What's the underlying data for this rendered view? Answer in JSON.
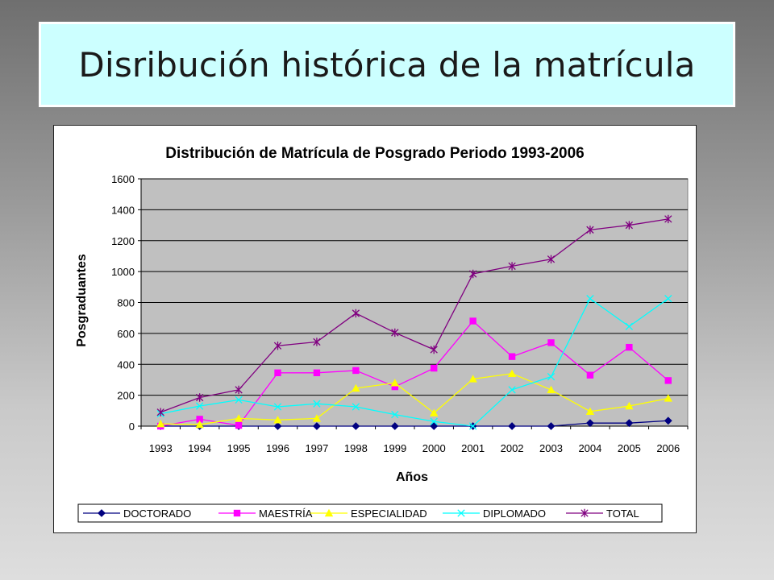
{
  "slide": {
    "title": "Disribución histórica de la matrícula"
  },
  "chart_data": {
    "type": "line",
    "title": "Distribución de Matrícula de Posgrado Periodo 1993-2006",
    "xlabel": "Años",
    "ylabel": "Posgraduantes",
    "ylim": [
      0,
      1600
    ],
    "yticks": [
      0,
      200,
      400,
      600,
      800,
      1000,
      1200,
      1400,
      1600
    ],
    "grid": true,
    "legend_position": "bottom",
    "plot_background": "#c0c0c0",
    "categories": [
      "1993",
      "1994",
      "1995",
      "1996",
      "1997",
      "1998",
      "1999",
      "2000",
      "2001",
      "2002",
      "2003",
      "2004",
      "2005",
      "2006"
    ],
    "series": [
      {
        "name": "DOCTORADO",
        "color": "#000080",
        "marker": "diamond",
        "values": [
          0,
          0,
          0,
          0,
          0,
          0,
          0,
          0,
          0,
          0,
          0,
          20,
          20,
          35
        ]
      },
      {
        "name": "MAESTRÍA",
        "color": "#ff00ff",
        "marker": "square",
        "values": [
          0,
          45,
          5,
          345,
          345,
          360,
          255,
          375,
          680,
          450,
          540,
          330,
          510,
          295
        ]
      },
      {
        "name": "ESPECIALIDAD",
        "color": "#ffff00",
        "marker": "triangle",
        "values": [
          15,
          10,
          50,
          40,
          50,
          245,
          280,
          85,
          305,
          340,
          235,
          95,
          130,
          180
        ]
      },
      {
        "name": "DIPLOMADO",
        "color": "#00ffff",
        "marker": "x",
        "values": [
          80,
          130,
          170,
          125,
          145,
          125,
          75,
          30,
          0,
          235,
          320,
          825,
          645,
          825
        ]
      },
      {
        "name": "TOTAL",
        "color": "#800080",
        "marker": "star",
        "values": [
          90,
          185,
          235,
          520,
          545,
          730,
          605,
          495,
          985,
          1035,
          1080,
          1270,
          1300,
          1340
        ]
      }
    ]
  }
}
